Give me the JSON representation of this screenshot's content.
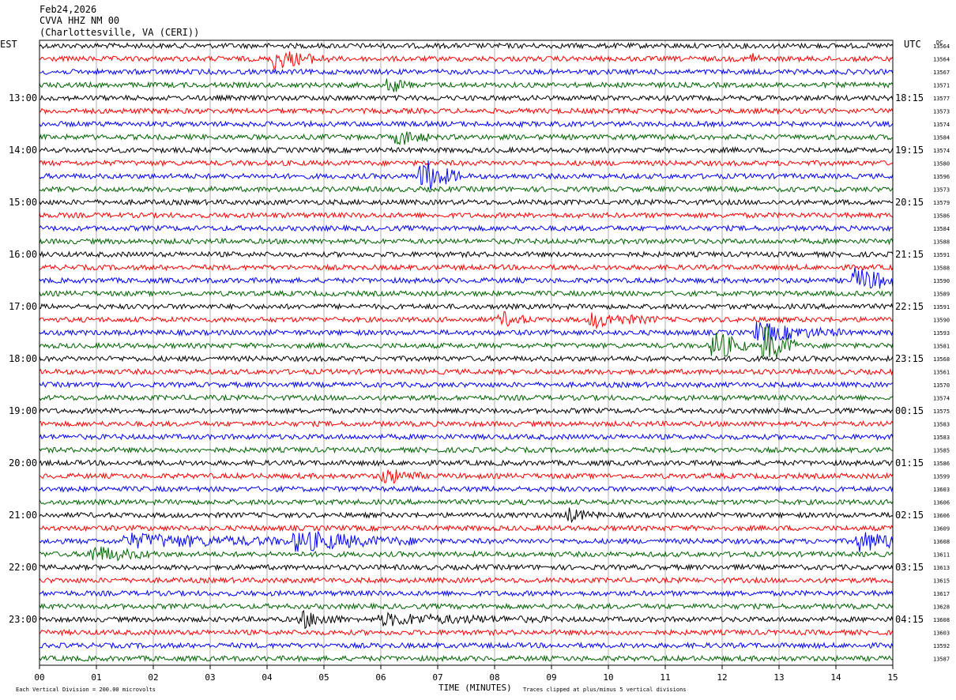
{
  "header": {
    "date": "Feb24,2026",
    "station": "CVVA HHZ NM 00",
    "location": "(Charlottesville, VA (CERI))"
  },
  "chart_data": {
    "type": "line",
    "title": "Feb24,2026",
    "left_axis_label": "EST",
    "right_axis_label": "UTC",
    "counts_label": "DC",
    "xlabel": "TIME (MINUTES)",
    "x_range": [
      0,
      15
    ],
    "x_ticks": [
      "00",
      "01",
      "02",
      "03",
      "04",
      "05",
      "06",
      "07",
      "08",
      "09",
      "10",
      "11",
      "12",
      "13",
      "14",
      "15"
    ],
    "hour_labels_est": [
      "13:00",
      "14:00",
      "15:00",
      "16:00",
      "17:00",
      "18:00",
      "19:00",
      "20:00",
      "21:00",
      "22:00",
      "23:00"
    ],
    "hour_labels_utc": [
      "18:15",
      "19:15",
      "20:15",
      "21:15",
      "22:15",
      "23:15",
      "00:15",
      "01:15",
      "02:15",
      "03:15",
      "04:15"
    ],
    "trace_colors": [
      "#000000",
      "#ff0000",
      "#0000ff",
      "#006400"
    ],
    "dc_offsets": [
      13564,
      13564,
      13567,
      13571,
      13577,
      13573,
      13574,
      13584,
      13574,
      13580,
      13596,
      13573,
      13579,
      13586,
      13584,
      13588,
      13591,
      13588,
      13590,
      13589,
      13591,
      13590,
      13593,
      13581,
      13568,
      13561,
      13570,
      13574,
      13575,
      13583,
      13583,
      13585,
      13586,
      13599,
      13603,
      13606,
      13606,
      13609,
      13608,
      13611,
      13613,
      13615,
      13617,
      13628,
      13608,
      13603,
      13592,
      13587
    ],
    "footer_scale": "Each Vertical Division =  200.00 microvolts",
    "footer_clip": "Traces clipped at plus/minus 5 vertical divisions",
    "events": [
      {
        "row": 1,
        "minute": 4.1,
        "amp": 2.2,
        "dur": 0.5
      },
      {
        "row": 1,
        "minute": 12.5,
        "amp": 1.6,
        "dur": 0.1
      },
      {
        "row": 3,
        "minute": 6.15,
        "amp": 1.8,
        "dur": 0.2
      },
      {
        "row": 7,
        "minute": 6.3,
        "amp": 1.8,
        "dur": 0.3
      },
      {
        "row": 10,
        "minute": 6.7,
        "amp": 4.5,
        "dur": 0.35
      },
      {
        "row": 18,
        "minute": 14.3,
        "amp": 2.5,
        "dur": 0.7
      },
      {
        "row": 21,
        "minute": 8.1,
        "amp": 1.6,
        "dur": 0.3
      },
      {
        "row": 21,
        "minute": 9.7,
        "amp": 1.6,
        "dur": 0.6
      },
      {
        "row": 22,
        "minute": 12.6,
        "amp": 2.0,
        "dur": 0.8
      },
      {
        "row": 23,
        "minute": 11.85,
        "amp": 4.0,
        "dur": 0.3
      },
      {
        "row": 23,
        "minute": 12.75,
        "amp": 4.5,
        "dur": 0.3
      },
      {
        "row": 33,
        "minute": 6.05,
        "amp": 1.8,
        "dur": 0.35
      },
      {
        "row": 36,
        "minute": 9.25,
        "amp": 1.5,
        "dur": 0.3
      },
      {
        "row": 38,
        "minute": 1.5,
        "amp": 1.4,
        "dur": 2.0
      },
      {
        "row": 38,
        "minute": 4.5,
        "amp": 1.8,
        "dur": 1.2
      },
      {
        "row": 38,
        "minute": 14.4,
        "amp": 2.0,
        "dur": 0.8
      },
      {
        "row": 39,
        "minute": 0.9,
        "amp": 1.8,
        "dur": 0.6
      },
      {
        "row": 44,
        "minute": 4.6,
        "amp": 1.8,
        "dur": 0.4
      },
      {
        "row": 44,
        "minute": 6.0,
        "amp": 1.1,
        "dur": 1.5
      }
    ]
  }
}
